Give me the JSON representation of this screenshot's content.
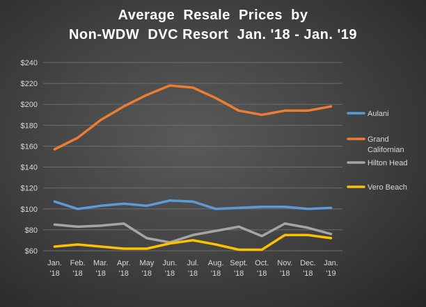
{
  "chart_data": {
    "type": "line",
    "title": [
      "Average  Resale  Prices  by",
      "Non-WDW  DVC Resort  Jan. '18 - Jan. '19"
    ],
    "xlabel": "",
    "ylabel": "",
    "categories": [
      [
        "Jan.",
        "'18"
      ],
      [
        "Feb.",
        "'18"
      ],
      [
        "Mar.",
        "'18"
      ],
      [
        "Apr.",
        "'18"
      ],
      [
        "May",
        "'18"
      ],
      [
        "Jun.",
        "'18"
      ],
      [
        "Jul.",
        "'18"
      ],
      [
        "Aug.",
        "'18"
      ],
      [
        "Sept.",
        "'18"
      ],
      [
        "Oct.",
        "'18"
      ],
      [
        "Nov.",
        "'18"
      ],
      [
        "Dec.",
        "'18"
      ],
      [
        "Jan.",
        "'19"
      ]
    ],
    "ylim": [
      60,
      240
    ],
    "yticks": [
      60,
      80,
      100,
      120,
      140,
      160,
      180,
      200,
      220,
      240
    ],
    "ytick_labels": [
      "$60",
      "$80",
      "$100",
      "$120",
      "$140",
      "$160",
      "$180",
      "$200",
      "$220",
      "$240"
    ],
    "grid": true,
    "legend_position": "right",
    "series": [
      {
        "name": [
          "Aulani"
        ],
        "color": "#5b9bd5",
        "values": [
          107,
          100,
          103,
          105,
          103,
          108,
          107,
          100,
          101,
          102,
          102,
          100,
          101
        ]
      },
      {
        "name": [
          "Grand",
          "Californian"
        ],
        "color": "#ed7d31",
        "values": [
          157,
          168,
          185,
          198,
          209,
          218,
          216,
          206,
          194,
          190,
          194,
          194,
          198
        ]
      },
      {
        "name": [
          "Hilton Head"
        ],
        "color": "#a5a5a5",
        "values": [
          85,
          83,
          84,
          86,
          72,
          68,
          75,
          79,
          83,
          74,
          86,
          82,
          76
        ]
      },
      {
        "name": [
          "Vero Beach"
        ],
        "color": "#ffc000",
        "values": [
          64,
          66,
          64,
          62,
          62,
          67,
          70,
          66,
          61,
          61,
          75,
          75,
          72
        ]
      }
    ]
  }
}
